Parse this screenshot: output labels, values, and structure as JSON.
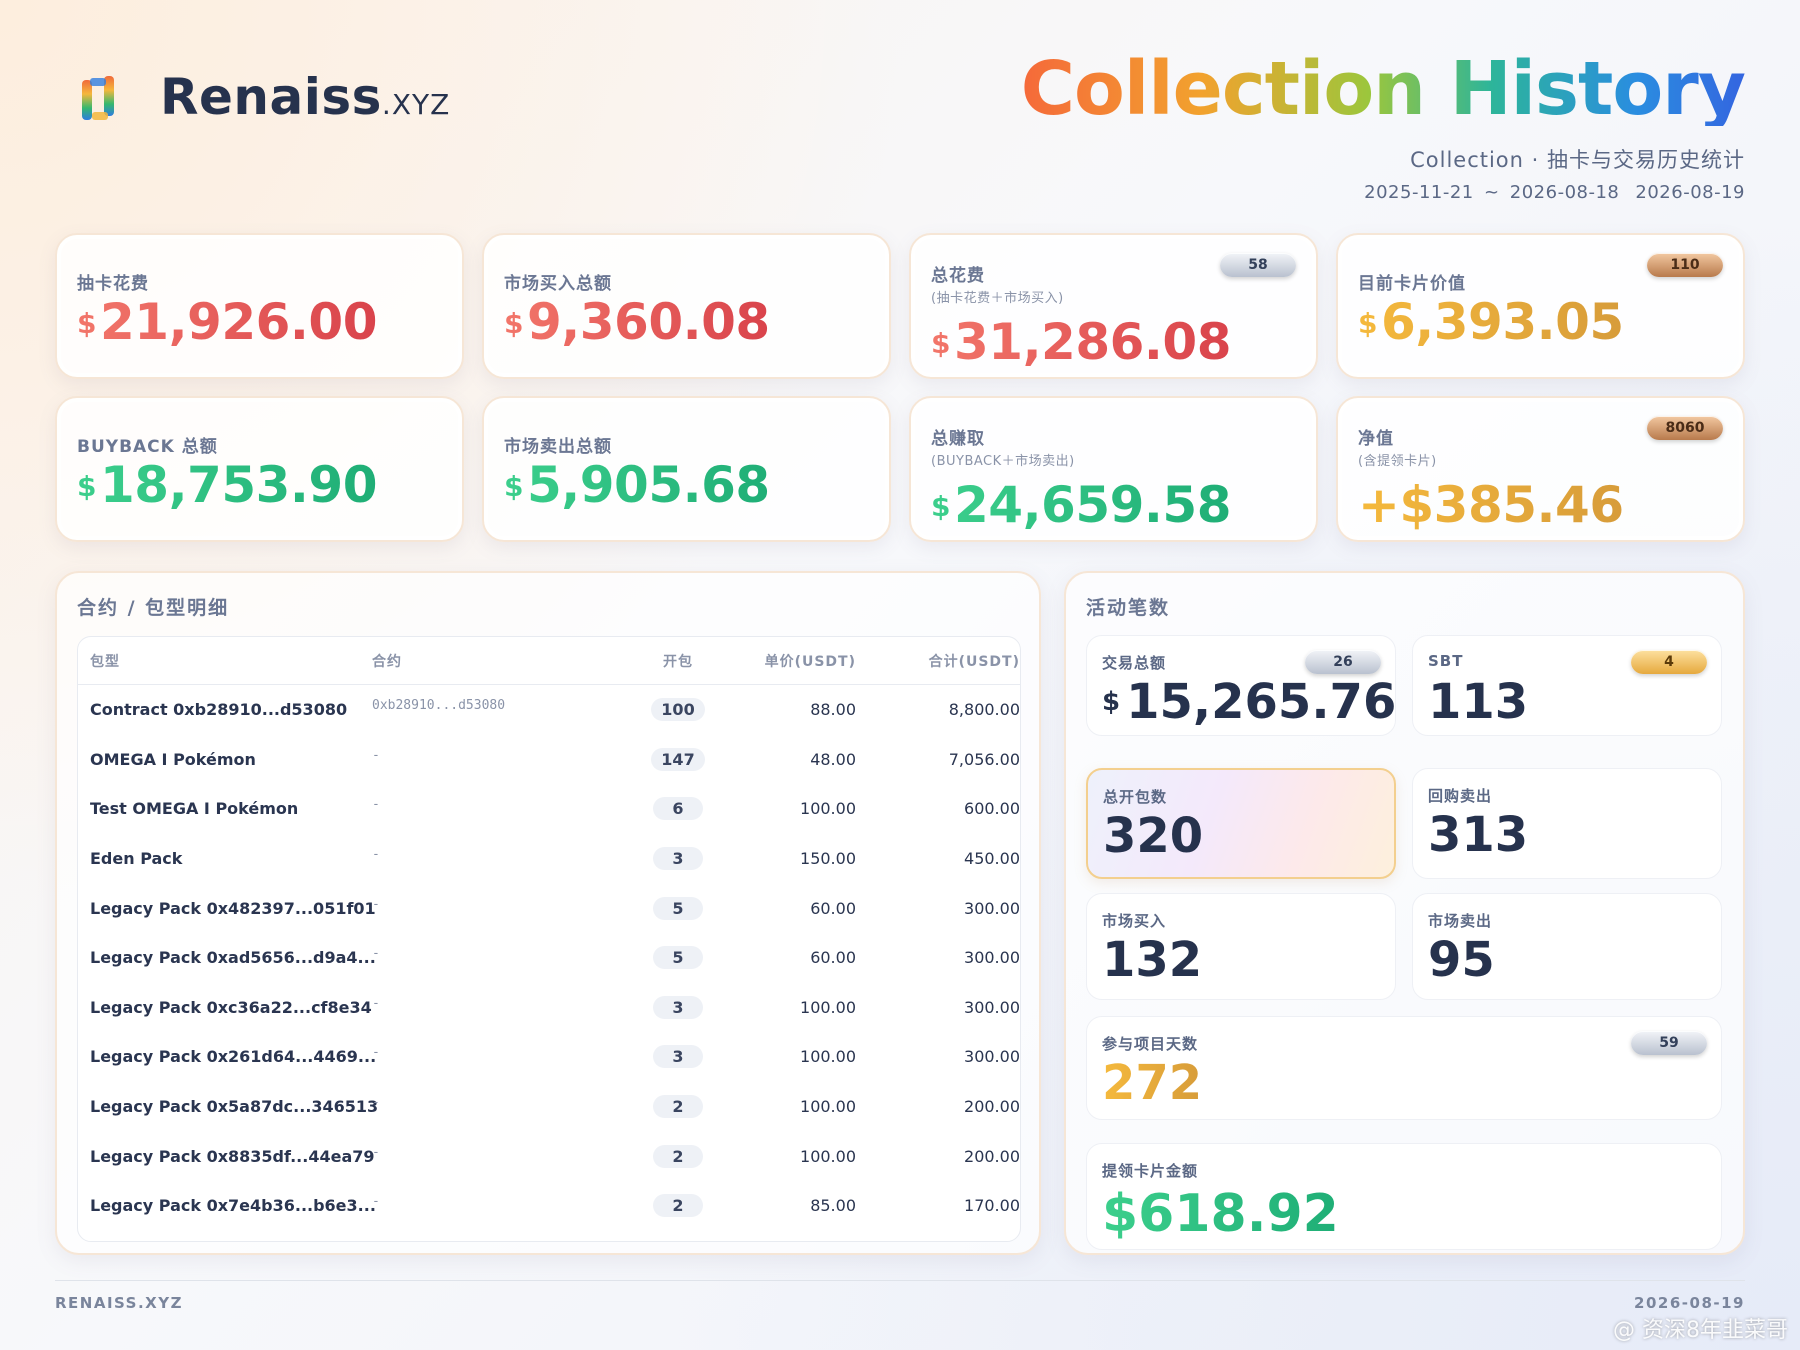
{
  "header": {
    "brand": "Renaiss",
    "brand_suffix": ".XYZ",
    "title": "Collection History",
    "subtitle": "Collection · 抽卡与交易历史统计",
    "date_range": "2025-11-21 ~ 2026-08-18",
    "date": "2026-08-19"
  },
  "cards": [
    {
      "label": "抽卡花费",
      "currency": "$",
      "amount": "21,926.00",
      "tone": "red"
    },
    {
      "label": "市场买入总额",
      "currency": "$",
      "amount": "9,360.08",
      "tone": "red"
    },
    {
      "label": "总花费",
      "note": "(抽卡花费＋市场买入)",
      "badge": {
        "text": "58",
        "style": "silver"
      },
      "currency": "$",
      "amount": "31,286.08",
      "tone": "red"
    },
    {
      "label": "目前卡片价值",
      "badge": {
        "text": "110",
        "style": "bronze"
      },
      "currency": "$",
      "amount": "6,393.05",
      "tone": "gold"
    },
    {
      "label": "BUYBACK 总额",
      "currency": "$",
      "amount": "18,753.90",
      "tone": "green"
    },
    {
      "label": "市场卖出总额",
      "currency": "$",
      "amount": "5,905.68",
      "tone": "green"
    },
    {
      "label": "总赚取",
      "note": "(BUYBACK＋市场卖出)",
      "currency": "$",
      "amount": "24,659.58",
      "tone": "green"
    },
    {
      "label": "净值",
      "note": "(含提领卡片)",
      "badge": {
        "text": "8060",
        "style": "bronze"
      },
      "amount": "+$385.46",
      "tone": "gold"
    }
  ],
  "table": {
    "title": "合约 / 包型明细",
    "columns": [
      "包型",
      "合约",
      "开包",
      "单价(USDT)",
      "合计(USDT)"
    ],
    "rows": [
      [
        "Contract 0xb28910...d53080",
        "0xb28910...d53080",
        "100",
        "88.00",
        "8,800.00"
      ],
      [
        "OMEGA I Pokémon",
        "-",
        "147",
        "48.00",
        "7,056.00"
      ],
      [
        "Test OMEGA I Pokémon",
        "-",
        "6",
        "100.00",
        "600.00"
      ],
      [
        "Eden Pack",
        "-",
        "3",
        "150.00",
        "450.00"
      ],
      [
        "Legacy Pack 0x482397...051f01",
        "-",
        "5",
        "60.00",
        "300.00"
      ],
      [
        "Legacy Pack 0xad5656...d9a4...",
        "-",
        "5",
        "60.00",
        "300.00"
      ],
      [
        "Legacy Pack 0xc36a22...cf8e34",
        "-",
        "3",
        "100.00",
        "300.00"
      ],
      [
        "Legacy Pack 0x261d64...4469...",
        "-",
        "3",
        "100.00",
        "300.00"
      ],
      [
        "Legacy Pack 0x5a87dc...346513",
        "-",
        "2",
        "100.00",
        "200.00"
      ],
      [
        "Legacy Pack 0x8835df...44ea79",
        "-",
        "2",
        "100.00",
        "200.00"
      ],
      [
        "Legacy Pack 0x7e4b36...b6e3...",
        "-",
        "2",
        "85.00",
        "170.00"
      ]
    ]
  },
  "activity": {
    "title": "活动笔数",
    "tiles": [
      {
        "label": "交易总额",
        "badge": {
          "text": "26",
          "style": "silver"
        },
        "currency": "$",
        "value": "15,265.76",
        "tone": "dark"
      },
      {
        "label": "SBT",
        "badge": {
          "text": "4",
          "style": "gold"
        },
        "value": "113",
        "tone": "dark"
      },
      {
        "label": "总开包数",
        "value": "320",
        "tone": "dark"
      },
      {
        "label": "回购卖出",
        "value": "313",
        "tone": "dark"
      },
      {
        "label": "市场买入",
        "value": "132",
        "tone": "dark"
      },
      {
        "label": "市场卖出",
        "value": "95",
        "tone": "dark"
      },
      {
        "label": "参与项目天数",
        "badge": {
          "text": "59",
          "style": "silver"
        },
        "value": "272",
        "tone": "gold"
      },
      {
        "label": "提领卡片金额",
        "value": "$618.92",
        "tone": "green"
      }
    ]
  },
  "footer": {
    "left": "RENAISS.XYZ",
    "right": "2026-08-19"
  },
  "watermark": "@ 资深8年韭菜哥"
}
